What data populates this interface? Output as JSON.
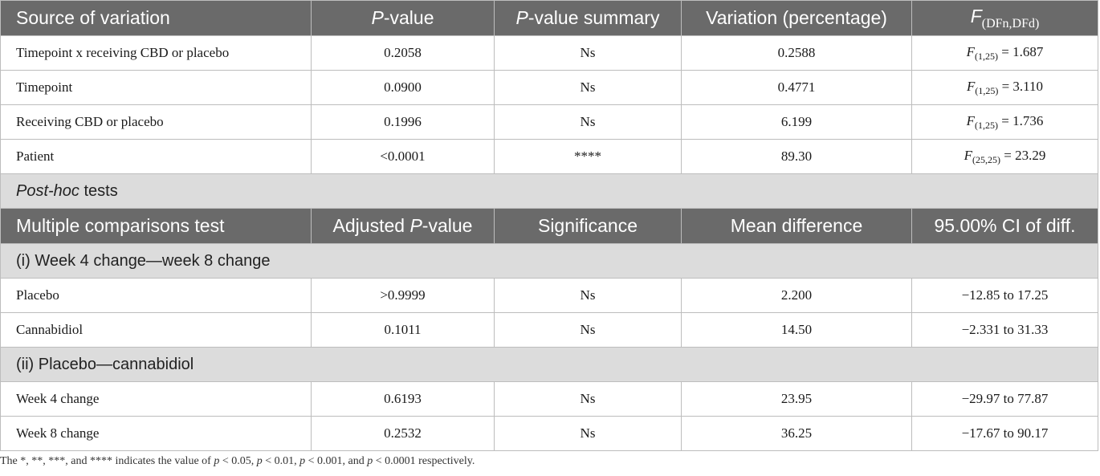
{
  "anova": {
    "headers": {
      "source": "Source of variation",
      "p_italic": "P",
      "p_rest": "-value",
      "summary_italic": "P",
      "summary_rest": "-value summary",
      "variation": "Variation (percentage)",
      "f_letter": "F",
      "f_sub": "(DFn,DFd)"
    },
    "rows": [
      {
        "source": "Timepoint x receiving CBD or placebo",
        "p": "0.2058",
        "summary": "Ns",
        "variation": "0.2588",
        "f_df": "(1,25)",
        "f_value": " = 1.687"
      },
      {
        "source": "Timepoint",
        "p": "0.0900",
        "summary": "Ns",
        "variation": "0.4771",
        "f_df": "(1,25)",
        "f_value": " = 3.110"
      },
      {
        "source": "Receiving CBD or placebo",
        "p": "0.1996",
        "summary": "Ns",
        "variation": "6.199",
        "f_df": "(1,25)",
        "f_value": " = 1.736"
      },
      {
        "source": "Patient",
        "p": "<0.0001",
        "summary": "****",
        "variation": "89.30",
        "f_df": "(25,25)",
        "f_value": " = 23.29"
      }
    ]
  },
  "posthoc": {
    "title_italic": "Post-hoc",
    "title_rest": " tests",
    "headers": {
      "test": "Multiple comparisons test",
      "adj_pre": "Adjusted ",
      "adj_italic": "P",
      "adj_rest": "-value",
      "significance": "Significance",
      "mean_diff": "Mean difference",
      "ci": "95.00% CI of diff."
    },
    "groups": [
      {
        "label": "(i) Week 4 change—week 8 change",
        "rows": [
          {
            "test": "Placebo",
            "adj_p": ">0.9999",
            "significance": "Ns",
            "mean_diff": "2.200",
            "ci": "−12.85 to 17.25"
          },
          {
            "test": "Cannabidiol",
            "adj_p": "0.1011",
            "significance": "Ns",
            "mean_diff": "14.50",
            "ci": "−2.331 to 31.33"
          }
        ]
      },
      {
        "label": "(ii) Placebo—cannabidiol",
        "rows": [
          {
            "test": "Week 4 change",
            "adj_p": "0.6193",
            "significance": "Ns",
            "mean_diff": "23.95",
            "ci": "−29.97 to 77.87"
          },
          {
            "test": "Week 8 change",
            "adj_p": "0.2532",
            "significance": "Ns",
            "mean_diff": "36.25",
            "ci": "−17.67 to 90.17"
          }
        ]
      }
    ]
  },
  "footnote": {
    "part1": "The *, **, ***, and **** indicates the value of ",
    "p1": "p",
    "t1": " < 0.05, ",
    "p2": "p",
    "t2": " < 0.01, ",
    "p3": "p",
    "t3": " < 0.001, and ",
    "p4": "p",
    "t4": " < 0.0001 respectively."
  }
}
